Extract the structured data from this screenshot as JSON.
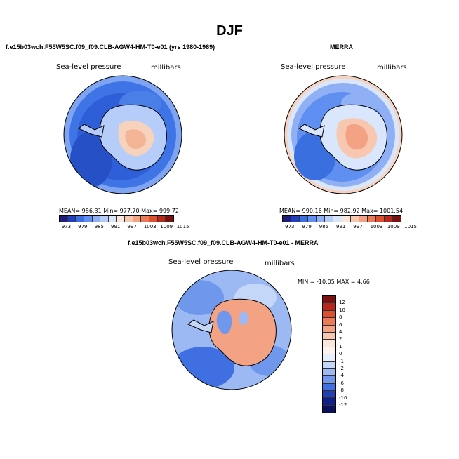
{
  "figure": {
    "title": "DJF"
  },
  "panel_model": {
    "title": "f.e15b03wch.F55W5SC.f09_f09.CLB-AGW4-HM-T0-e01 (yrs 1980-1989)",
    "field_label": "Sea-level pressure",
    "units_label": "millibars",
    "stats": "MEAN= 986.31   Min= 977.70   Max= 999.72"
  },
  "panel_obs": {
    "title": "MERRA",
    "field_label": "Sea-level pressure",
    "units_label": "millibars",
    "stats": "MEAN= 990.16   Min= 982.92   Max= 1001.54"
  },
  "panel_diff": {
    "title": "f.e15b03wch.F55W5SC.f09_f09.CLB-AGW4-HM-T0-e01 - MERRA",
    "field_label": "Sea-level pressure",
    "units_label": "millibars",
    "stats": "MIN = -10.05  MAX =    4.66"
  },
  "colorbar_abs": {
    "levels": [
      "973",
      "979",
      "985",
      "991",
      "997",
      "1003",
      "1009",
      "1015"
    ],
    "colors": [
      "#1f1f7a",
      "#1f3fbf",
      "#3a6fe0",
      "#5f8ff0",
      "#8fb0f5",
      "#b5cdf8",
      "#d9e6fb",
      "#fbe6dc",
      "#f7c7b0",
      "#f3a283",
      "#ec7a57",
      "#de4f2e",
      "#b8281a",
      "#7a1010"
    ]
  },
  "colorbar_diff": {
    "levels": [
      "12",
      "10",
      "8",
      "6",
      "4",
      "2",
      "1",
      "0",
      "-1",
      "-2",
      "-4",
      "-6",
      "-8",
      "-10",
      "-12"
    ],
    "colors": [
      "#7a1010",
      "#b8281a",
      "#de4f2e",
      "#ec7a57",
      "#f3a283",
      "#f7c7b0",
      "#fbe6dc",
      "#fdf3ee",
      "#e8effc",
      "#c5d7f8",
      "#9db9f3",
      "#6f97ec",
      "#3f6fe0",
      "#2040b8",
      "#10208a",
      "#08105a"
    ]
  },
  "legend_colors": {
    "land_outline": "#000000",
    "ocean_low": "#3a6fe0",
    "ice_high": "#f7c7b0"
  }
}
